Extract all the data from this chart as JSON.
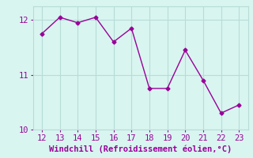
{
  "x": [
    12,
    13,
    14,
    15,
    16,
    17,
    18,
    19,
    20,
    21,
    22,
    23
  ],
  "y": [
    11.75,
    12.05,
    11.95,
    12.05,
    11.6,
    11.85,
    10.75,
    10.75,
    11.45,
    10.9,
    10.3,
    10.45
  ],
  "line_color": "#990099",
  "marker": "D",
  "marker_size": 2.5,
  "line_width": 1,
  "background_color": "#d8f5f0",
  "grid_color": "#b8dcd8",
  "xlabel": "Windchill (Refroidissement éolien,°C)",
  "xlabel_color": "#990099",
  "tick_color": "#990099",
  "label_color": "#990099",
  "xlim": [
    11.5,
    23.5
  ],
  "ylim": [
    10.0,
    12.25
  ],
  "xticks": [
    12,
    13,
    14,
    15,
    16,
    17,
    18,
    19,
    20,
    21,
    22,
    23
  ],
  "yticks": [
    10,
    11,
    12
  ],
  "xlabel_fontsize": 7.5,
  "tick_fontsize": 7.5
}
